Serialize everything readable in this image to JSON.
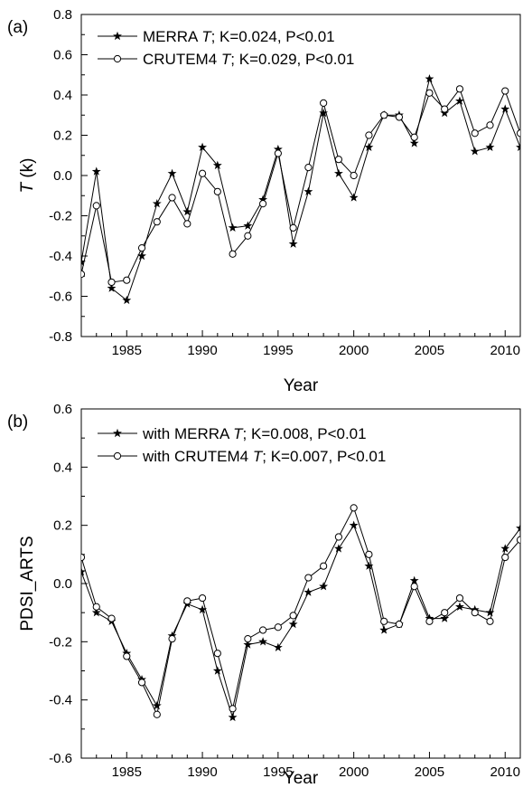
{
  "chart_data": [
    {
      "type": "line",
      "panel_label": "(a)",
      "xlabel": "Year",
      "ylabel_main": "T",
      "ylabel_unit": " (k)",
      "xlim": [
        1982,
        2011
      ],
      "ylim": [
        -0.8,
        0.8
      ],
      "xticks": [
        1985,
        1990,
        1995,
        2000,
        2005,
        2010
      ],
      "yticks": [
        -0.8,
        -0.6,
        -0.4,
        -0.2,
        0.0,
        0.2,
        0.4,
        0.6,
        0.8
      ],
      "ytick_labels": [
        "-0.8",
        "-0.6",
        "-0.4",
        "-0.2",
        "0.0",
        "0.2",
        "0.4",
        "0.6",
        "0.8"
      ],
      "grid": false,
      "legend_position": "top-left",
      "x": [
        1982,
        1983,
        1984,
        1985,
        1986,
        1987,
        1988,
        1989,
        1990,
        1991,
        1992,
        1993,
        1994,
        1995,
        1996,
        1997,
        1998,
        1999,
        2000,
        2001,
        2002,
        2003,
        2004,
        2005,
        2006,
        2007,
        2008,
        2009,
        2010,
        2011
      ],
      "series": [
        {
          "marker": "star",
          "legend_pre": "MERRA ",
          "legend_italic": "T",
          "legend_post": "; K=0.024, P<0.01",
          "values": [
            -0.43,
            0.02,
            -0.56,
            -0.62,
            -0.4,
            -0.14,
            0.01,
            -0.18,
            0.14,
            0.05,
            -0.26,
            -0.25,
            -0.12,
            0.13,
            -0.34,
            -0.08,
            0.31,
            0.01,
            -0.11,
            0.14,
            0.3,
            0.3,
            0.16,
            0.48,
            0.31,
            0.37,
            0.12,
            0.14,
            0.33,
            0.14
          ]
        },
        {
          "marker": "circle",
          "legend_pre": "CRUTEM4 ",
          "legend_italic": "T",
          "legend_post": "; K=0.029, P<0.01",
          "values": [
            -0.49,
            -0.15,
            -0.53,
            -0.52,
            -0.36,
            -0.23,
            -0.11,
            -0.24,
            0.01,
            -0.08,
            -0.39,
            -0.3,
            -0.14,
            0.11,
            -0.26,
            0.04,
            0.36,
            0.08,
            0.0,
            0.2,
            0.3,
            0.29,
            0.19,
            0.41,
            0.33,
            0.43,
            0.21,
            0.25,
            0.42,
            0.21
          ]
        }
      ]
    },
    {
      "type": "line",
      "panel_label": "(b)",
      "xlabel": "Year",
      "ylabel_main": "PDSI_ARTS",
      "ylabel_unit": "",
      "xlim": [
        1982,
        2011
      ],
      "ylim": [
        -0.6,
        0.6
      ],
      "xticks": [
        1985,
        1990,
        1995,
        2000,
        2005,
        2010
      ],
      "yticks": [
        -0.6,
        -0.4,
        -0.2,
        0.0,
        0.2,
        0.4,
        0.6
      ],
      "ytick_labels": [
        "-0.6",
        "-0.4",
        "-0.2",
        "0.0",
        "0.2",
        "0.4",
        "0.6"
      ],
      "grid": false,
      "legend_position": "top-left",
      "x": [
        1982,
        1983,
        1984,
        1985,
        1986,
        1987,
        1988,
        1989,
        1990,
        1991,
        1992,
        1993,
        1994,
        1995,
        1996,
        1997,
        1998,
        1999,
        2000,
        2001,
        2002,
        2003,
        2004,
        2005,
        2006,
        2007,
        2008,
        2009,
        2010,
        2011
      ],
      "series": [
        {
          "marker": "star",
          "legend_pre": "with MERRA ",
          "legend_italic": "T",
          "legend_post": "; K=0.008,  P<0.01",
          "values": [
            0.04,
            -0.1,
            -0.13,
            -0.24,
            -0.33,
            -0.42,
            -0.18,
            -0.07,
            -0.09,
            -0.3,
            -0.46,
            -0.21,
            -0.2,
            -0.22,
            -0.14,
            -0.03,
            -0.01,
            0.12,
            0.2,
            0.06,
            -0.16,
            -0.14,
            0.01,
            -0.12,
            -0.12,
            -0.08,
            -0.09,
            -0.1,
            0.12,
            0.19
          ]
        },
        {
          "marker": "circle",
          "legend_pre": "with CRUTEM4 ",
          "legend_italic": "T",
          "legend_post": "; K=0.007,  P<0.01",
          "values": [
            0.09,
            -0.08,
            -0.12,
            -0.25,
            -0.34,
            -0.45,
            -0.19,
            -0.06,
            -0.05,
            -0.24,
            -0.43,
            -0.19,
            -0.16,
            -0.15,
            -0.11,
            0.02,
            0.06,
            0.16,
            0.26,
            0.1,
            -0.13,
            -0.14,
            -0.01,
            -0.13,
            -0.1,
            -0.05,
            -0.1,
            -0.13,
            0.09,
            0.15
          ]
        }
      ]
    }
  ]
}
